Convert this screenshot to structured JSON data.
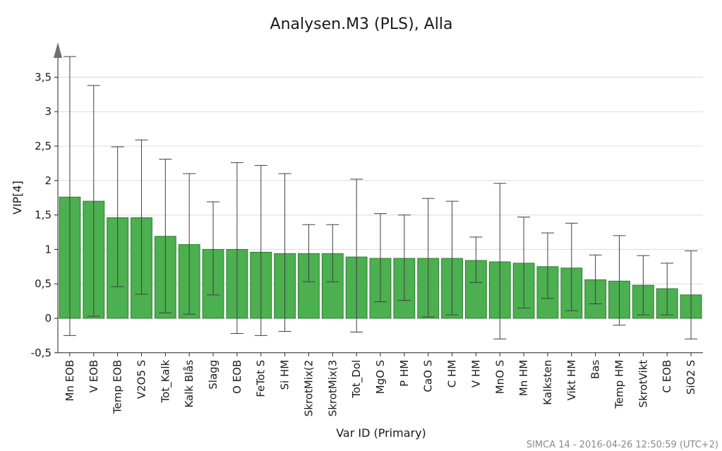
{
  "footer": "SIMCA 14 - 2016-04-26 12:50:59 (UTC+2)",
  "bar_color": "#4caf50",
  "chart_data": {
    "type": "bar",
    "title": "Analysen.M3 (PLS), Alla",
    "xlabel": "Var ID (Primary)",
    "ylabel": "VIP[4]",
    "ylim": [
      -0.5,
      3.8
    ],
    "ytick_labels": [
      "-0,5",
      "0",
      "0,5",
      "1",
      "1,5",
      "2",
      "2,5",
      "3",
      "3,5"
    ],
    "grid": true,
    "categories": [
      "Mn EOB",
      "V EOB",
      "Temp EOB",
      "V2O5 S",
      "Tot_Kalk",
      "Kalk Blås",
      "Slagg",
      "O EOB",
      "FeTot S",
      "Si HM",
      "SkrotMix(2",
      "SkrotMix(3",
      "Tot_Dol",
      "MgO S",
      "P HM",
      "CaO S",
      "C HM",
      "V HM",
      "MnO S",
      "Mn HM",
      "Kalksten",
      "Vikt HM",
      "Bas",
      "Temp HM",
      "SkrotVikt",
      "C EOB",
      "SiO2 S"
    ],
    "values": [
      1.76,
      1.7,
      1.46,
      1.46,
      1.19,
      1.07,
      1.0,
      1.0,
      0.96,
      0.94,
      0.94,
      0.94,
      0.89,
      0.87,
      0.87,
      0.87,
      0.87,
      0.84,
      0.82,
      0.8,
      0.75,
      0.73,
      0.56,
      0.54,
      0.48,
      0.43,
      0.34
    ],
    "error_low": [
      -0.25,
      0.03,
      0.46,
      0.35,
      0.08,
      0.06,
      0.34,
      -0.22,
      -0.25,
      -0.19,
      0.53,
      0.53,
      -0.2,
      0.24,
      0.26,
      0.02,
      0.05,
      0.52,
      -0.3,
      0.15,
      0.29,
      0.11,
      0.21,
      -0.1,
      0.05,
      0.05,
      -0.3
    ],
    "error_high": [
      3.8,
      3.38,
      2.49,
      2.59,
      2.31,
      2.1,
      1.69,
      2.26,
      2.22,
      2.1,
      1.36,
      1.36,
      2.02,
      1.52,
      1.5,
      1.74,
      1.7,
      1.18,
      1.96,
      1.47,
      1.24,
      1.38,
      0.92,
      1.2,
      0.91,
      0.8,
      0.98
    ]
  }
}
